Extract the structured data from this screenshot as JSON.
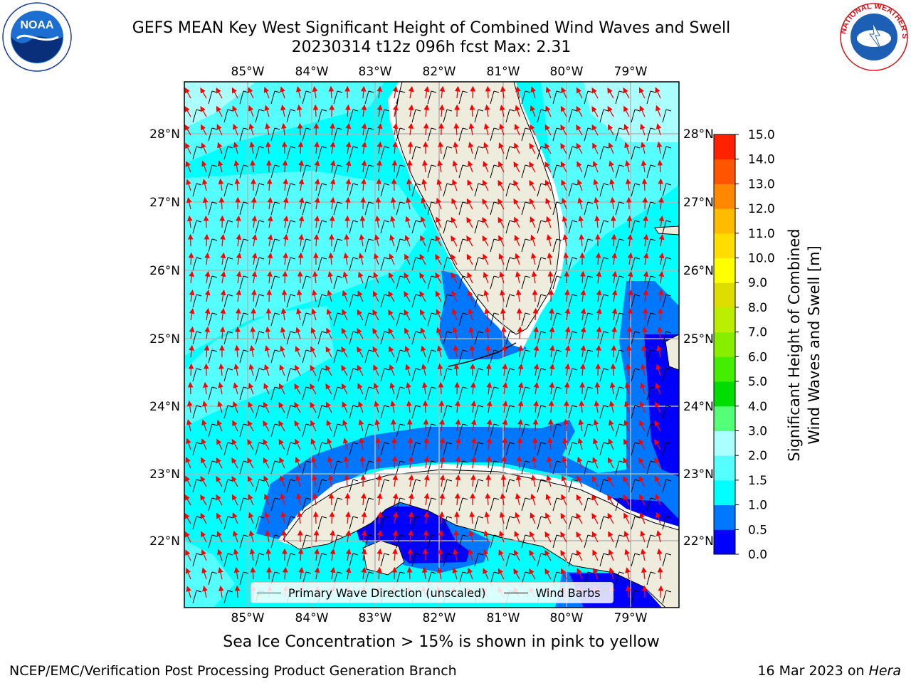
{
  "title": {
    "line1": "GEFS MEAN Key West Significant Height of Combined Wind Waves and Swell",
    "line2": "20230314 t12z 096h fcst   Max: 2.31"
  },
  "map": {
    "lon_labels": [
      "85°W",
      "84°W",
      "83°W",
      "82°W",
      "81°W",
      "80°W",
      "79°W"
    ],
    "lat_labels": [
      "28°N",
      "27°N",
      "26°N",
      "25°N",
      "24°N",
      "23°N",
      "22°N"
    ],
    "colors": {
      "ocean_light": "#00ffff",
      "ocean_pale": "#aaffff",
      "ocean_mid": "#55ffff",
      "blue_1": "#0077ff",
      "blue_0": "#0000ff",
      "land": "#eeecdc",
      "grid": "#b3b3b3",
      "wave_arrow": "#ff0000",
      "wind_barb": "#000000"
    }
  },
  "legend": {
    "wave_label": "Primary Wave Direction (unscaled)",
    "barb_label": "Wind Barbs"
  },
  "colorbar": {
    "label_line1": "Significant Height of Combined",
    "label_line2": "Wind Waves and Swell [m]",
    "ticks": [
      "0.0",
      "0.5",
      "1.0",
      "1.5",
      "2.0",
      "3.0",
      "4.0",
      "5.0",
      "6.0",
      "7.0",
      "8.0",
      "9.0",
      "10.0",
      "11.0",
      "12.0",
      "13.0",
      "14.0",
      "15.0"
    ],
    "colors": [
      "#0000ff",
      "#0077ff",
      "#00ffff",
      "#55ffff",
      "#aaffff",
      "#55ff77",
      "#00dd00",
      "#44ee00",
      "#88ee00",
      "#bbee00",
      "#dddd00",
      "#ffff00",
      "#ffdd00",
      "#ffbb00",
      "#ff8800",
      "#ff5500",
      "#ff2200",
      "#ff0000"
    ]
  },
  "ice_note": "Sea Ice Concentration > 15% is shown in pink to yellow",
  "footer": {
    "left": "NCEP/EMC/Verification Post Processing Product Generation Branch",
    "right_date": "16 Mar 2023 on ",
    "right_host": "Hera"
  },
  "logos": {
    "noaa_text": "NOAA",
    "nws_text": "NATIONAL WEATHER SERVICE"
  }
}
